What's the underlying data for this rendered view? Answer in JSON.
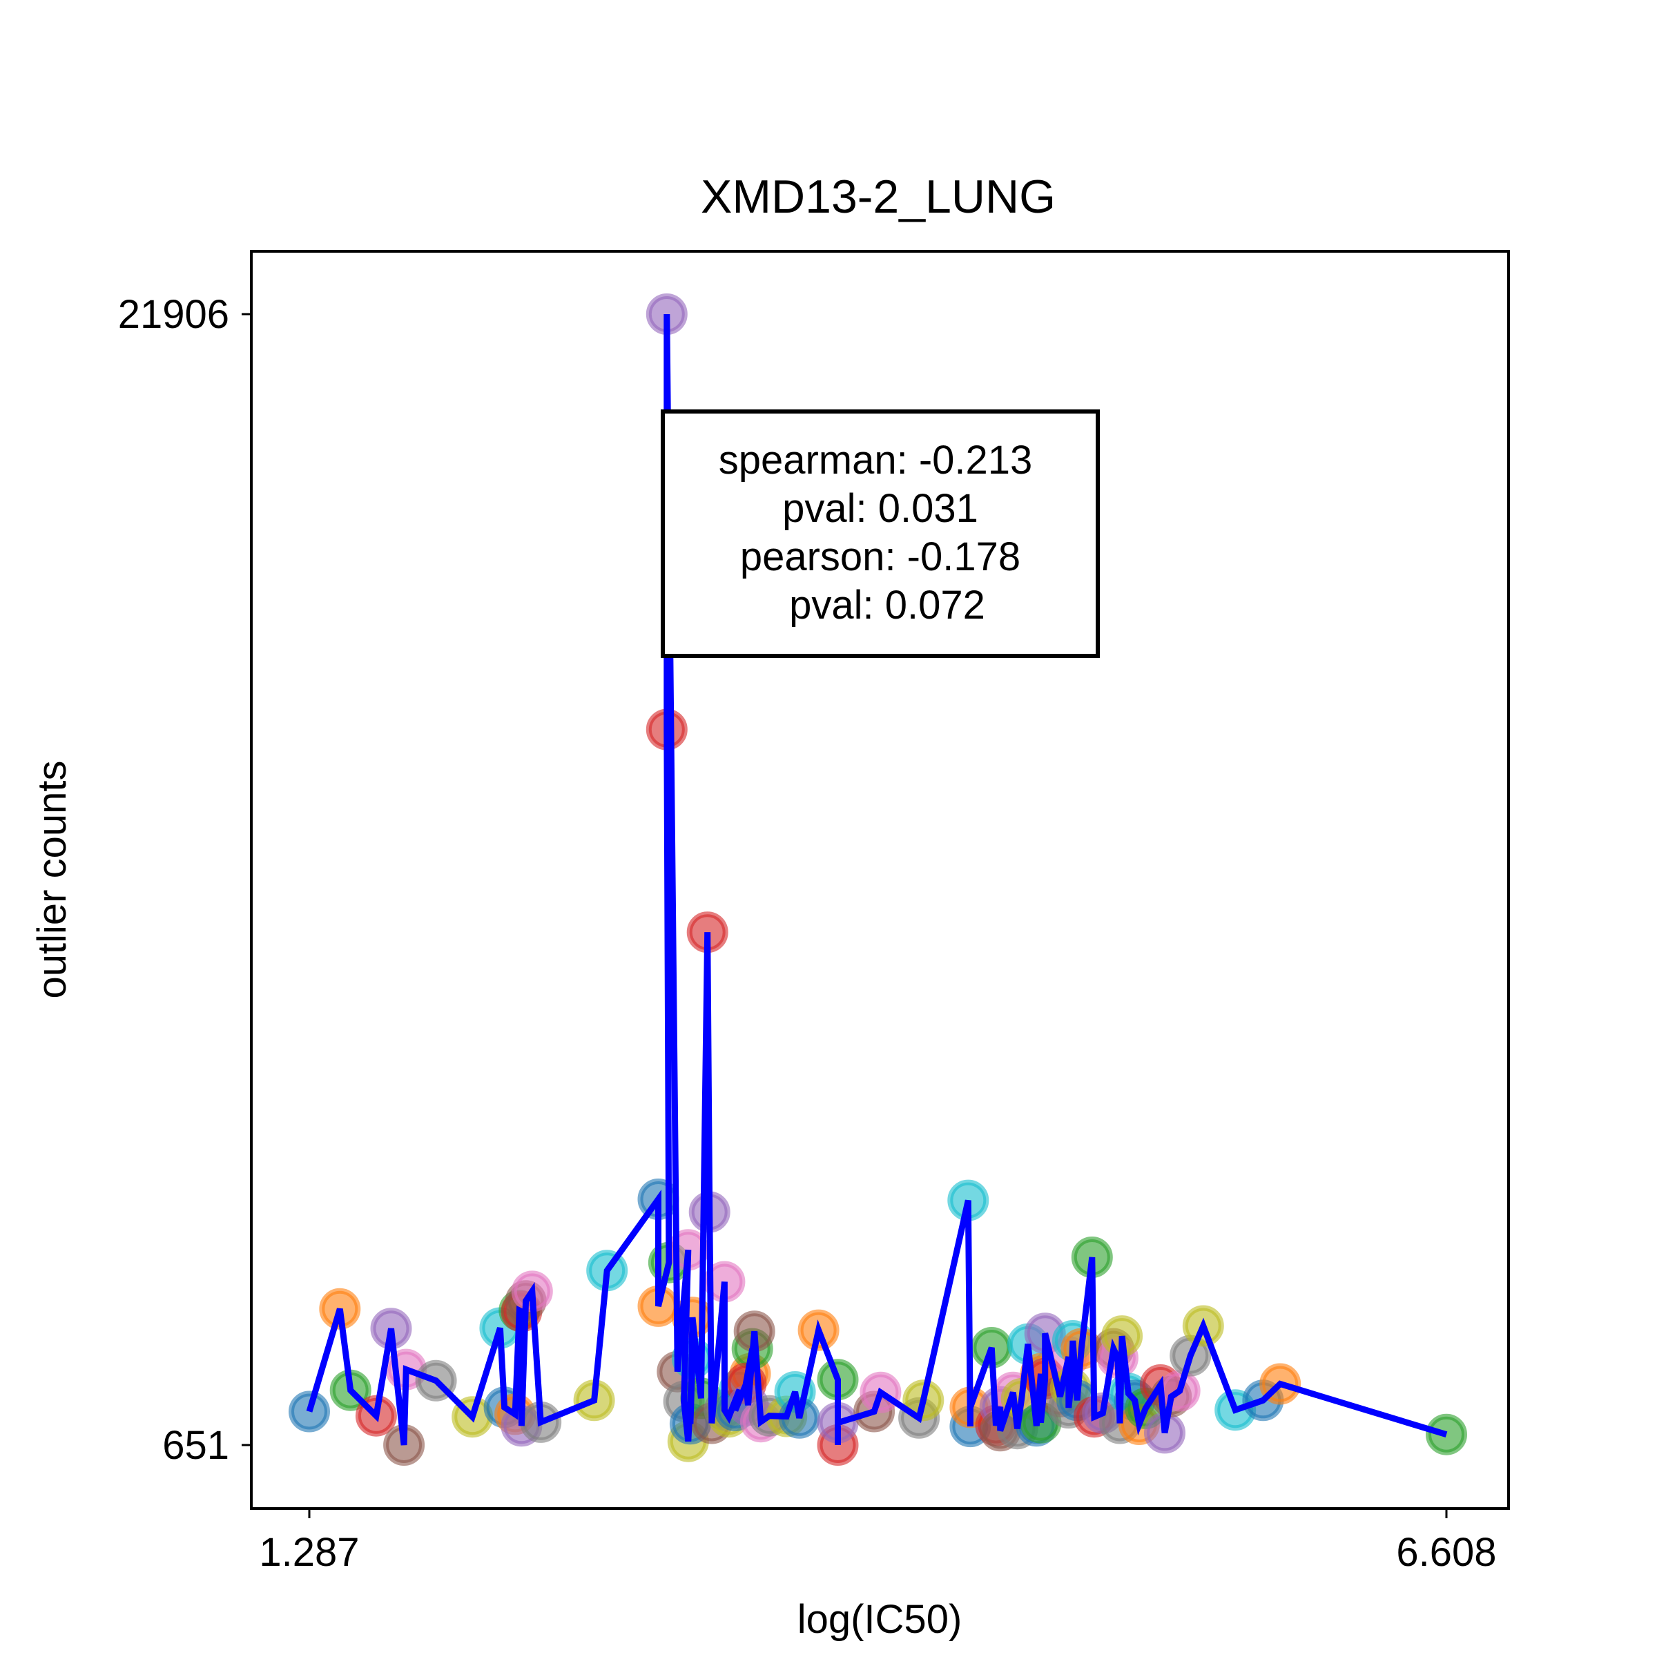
{
  "chart_data": {
    "type": "scatter",
    "title": "XMD13-2_LUNG",
    "xlabel": "log(IC50)",
    "ylabel": "outlier counts",
    "xlim": [
      1.287,
      6.608
    ],
    "ylim": [
      651,
      21906
    ],
    "x_ticks": [
      "1.287",
      "6.608"
    ],
    "y_ticks": [
      "21906",
      "651"
    ],
    "line_color": "#0000ff",
    "grid": false,
    "legend": "none",
    "annotation": {
      "lines": [
        "spearman: -0.213",
        "pval: 0.031",
        "pearson: -0.178",
        "pval: 0.072"
      ]
    },
    "points": [
      {
        "x": 1.287,
        "y": 1280,
        "c": "#1f77b4"
      },
      {
        "x": 1.43,
        "y": 3210,
        "c": "#ff7f0e"
      },
      {
        "x": 1.48,
        "y": 1680,
        "c": "#2ca02c"
      },
      {
        "x": 1.6,
        "y": 1200,
        "c": "#d62728"
      },
      {
        "x": 1.67,
        "y": 2840,
        "c": "#9467bd"
      },
      {
        "x": 1.73,
        "y": 651,
        "c": "#8c564b"
      },
      {
        "x": 1.74,
        "y": 2070,
        "c": "#e377c2"
      },
      {
        "x": 1.88,
        "y": 1860,
        "c": "#7f7f7f"
      },
      {
        "x": 2.05,
        "y": 1180,
        "c": "#bcbd22"
      },
      {
        "x": 2.18,
        "y": 2850,
        "c": "#17becf"
      },
      {
        "x": 2.2,
        "y": 1360,
        "c": "#1f77b4"
      },
      {
        "x": 2.25,
        "y": 1230,
        "c": "#ff7f0e"
      },
      {
        "x": 2.27,
        "y": 3180,
        "c": "#2ca02c"
      },
      {
        "x": 2.28,
        "y": 3160,
        "c": "#d62728"
      },
      {
        "x": 2.28,
        "y": 1010,
        "c": "#9467bd"
      },
      {
        "x": 2.3,
        "y": 3360,
        "c": "#8c564b"
      },
      {
        "x": 2.33,
        "y": 3540,
        "c": "#e377c2"
      },
      {
        "x": 2.37,
        "y": 1080,
        "c": "#7f7f7f"
      },
      {
        "x": 2.62,
        "y": 1490,
        "c": "#bcbd22"
      },
      {
        "x": 2.68,
        "y": 3930,
        "c": "#17becf"
      },
      {
        "x": 2.92,
        "y": 5270,
        "c": "#1f77b4"
      },
      {
        "x": 2.92,
        "y": 3260,
        "c": "#ff7f0e"
      },
      {
        "x": 2.97,
        "y": 4080,
        "c": "#2ca02c"
      },
      {
        "x": 2.96,
        "y": 14100,
        "c": "#d62728"
      },
      {
        "x": 2.96,
        "y": 21906,
        "c": "#9467bd"
      },
      {
        "x": 3.01,
        "y": 2030,
        "c": "#8c564b"
      },
      {
        "x": 3.06,
        "y": 4320,
        "c": "#e377c2"
      },
      {
        "x": 3.04,
        "y": 1470,
        "c": "#7f7f7f"
      },
      {
        "x": 3.06,
        "y": 720,
        "c": "#bcbd22"
      },
      {
        "x": 3.08,
        "y": 2280,
        "c": "#17becf"
      },
      {
        "x": 3.07,
        "y": 1050,
        "c": "#1f77b4"
      },
      {
        "x": 3.08,
        "y": 3050,
        "c": "#ff7f0e"
      },
      {
        "x": 3.12,
        "y": 1530,
        "c": "#2ca02c"
      },
      {
        "x": 3.15,
        "y": 10290,
        "c": "#d62728"
      },
      {
        "x": 3.16,
        "y": 5030,
        "c": "#9467bd"
      },
      {
        "x": 3.17,
        "y": 1060,
        "c": "#8c564b"
      },
      {
        "x": 3.23,
        "y": 3720,
        "c": "#e377c2"
      },
      {
        "x": 3.23,
        "y": 1310,
        "c": "#7f7f7f"
      },
      {
        "x": 3.25,
        "y": 1180,
        "c": "#bcbd22"
      },
      {
        "x": 3.3,
        "y": 1690,
        "c": "#17becf"
      },
      {
        "x": 3.28,
        "y": 1300,
        "c": "#1f77b4"
      },
      {
        "x": 3.35,
        "y": 1990,
        "c": "#ff7f0e"
      },
      {
        "x": 3.36,
        "y": 2460,
        "c": "#2ca02c"
      },
      {
        "x": 3.33,
        "y": 1810,
        "c": "#d62728"
      },
      {
        "x": 3.34,
        "y": 1400,
        "c": "#9467bd"
      },
      {
        "x": 3.37,
        "y": 2790,
        "c": "#8c564b"
      },
      {
        "x": 3.4,
        "y": 1090,
        "c": "#e377c2"
      },
      {
        "x": 3.44,
        "y": 1200,
        "c": "#7f7f7f"
      },
      {
        "x": 3.52,
        "y": 1190,
        "c": "#bcbd22"
      },
      {
        "x": 3.56,
        "y": 1650,
        "c": "#17becf"
      },
      {
        "x": 3.58,
        "y": 1160,
        "c": "#1f77b4"
      },
      {
        "x": 3.67,
        "y": 2810,
        "c": "#ff7f0e"
      },
      {
        "x": 3.76,
        "y": 1880,
        "c": "#2ca02c"
      },
      {
        "x": 3.76,
        "y": 651,
        "c": "#d62728"
      },
      {
        "x": 3.76,
        "y": 1070,
        "c": "#9467bd"
      },
      {
        "x": 3.93,
        "y": 1280,
        "c": "#8c564b"
      },
      {
        "x": 3.96,
        "y": 1640,
        "c": "#e377c2"
      },
      {
        "x": 4.14,
        "y": 1160,
        "c": "#7f7f7f"
      },
      {
        "x": 4.16,
        "y": 1490,
        "c": "#bcbd22"
      },
      {
        "x": 4.37,
        "y": 5250,
        "c": "#17becf"
      },
      {
        "x": 4.38,
        "y": 1000,
        "c": "#1f77b4"
      },
      {
        "x": 4.38,
        "y": 1360,
        "c": "#ff7f0e"
      },
      {
        "x": 4.48,
        "y": 2480,
        "c": "#2ca02c"
      },
      {
        "x": 4.5,
        "y": 1020,
        "c": "#d62728"
      },
      {
        "x": 4.52,
        "y": 1370,
        "c": "#9467bd"
      },
      {
        "x": 4.52,
        "y": 920,
        "c": "#8c564b"
      },
      {
        "x": 4.58,
        "y": 1640,
        "c": "#e377c2"
      },
      {
        "x": 4.6,
        "y": 960,
        "c": "#7f7f7f"
      },
      {
        "x": 4.62,
        "y": 1520,
        "c": "#bcbd22"
      },
      {
        "x": 4.65,
        "y": 2550,
        "c": "#17becf"
      },
      {
        "x": 4.69,
        "y": 1010,
        "c": "#1f77b4"
      },
      {
        "x": 4.71,
        "y": 1990,
        "c": "#ff7f0e"
      },
      {
        "x": 4.71,
        "y": 1070,
        "c": "#2ca02c"
      },
      {
        "x": 4.73,
        "y": 1900,
        "c": "#d62728"
      },
      {
        "x": 4.73,
        "y": 2750,
        "c": "#9467bd"
      },
      {
        "x": 4.8,
        "y": 1560,
        "c": "#8c564b"
      },
      {
        "x": 4.84,
        "y": 2310,
        "c": "#e377c2"
      },
      {
        "x": 4.84,
        "y": 1350,
        "c": "#7f7f7f"
      },
      {
        "x": 4.85,
        "y": 1720,
        "c": "#bcbd22"
      },
      {
        "x": 4.86,
        "y": 2610,
        "c": "#17becf"
      },
      {
        "x": 4.88,
        "y": 1490,
        "c": "#1f77b4"
      },
      {
        "x": 4.9,
        "y": 2460,
        "c": "#ff7f0e"
      },
      {
        "x": 4.95,
        "y": 4180,
        "c": "#2ca02c"
      },
      {
        "x": 4.96,
        "y": 1180,
        "c": "#d62728"
      },
      {
        "x": 5.0,
        "y": 1250,
        "c": "#9467bd"
      },
      {
        "x": 5.05,
        "y": 2460,
        "c": "#8c564b"
      },
      {
        "x": 5.07,
        "y": 2290,
        "c": "#e377c2"
      },
      {
        "x": 5.08,
        "y": 1060,
        "c": "#7f7f7f"
      },
      {
        "x": 5.09,
        "y": 2700,
        "c": "#bcbd22"
      },
      {
        "x": 5.12,
        "y": 1620,
        "c": "#17becf"
      },
      {
        "x": 5.15,
        "y": 1490,
        "c": "#1f77b4"
      },
      {
        "x": 5.17,
        "y": 1040,
        "c": "#ff7f0e"
      },
      {
        "x": 5.2,
        "y": 1340,
        "c": "#2ca02c"
      },
      {
        "x": 5.27,
        "y": 1780,
        "c": "#d62728"
      },
      {
        "x": 5.29,
        "y": 880,
        "c": "#9467bd"
      },
      {
        "x": 5.32,
        "y": 1560,
        "c": "#8c564b"
      },
      {
        "x": 5.36,
        "y": 1670,
        "c": "#e377c2"
      },
      {
        "x": 5.41,
        "y": 2330,
        "c": "#7f7f7f"
      },
      {
        "x": 5.47,
        "y": 2890,
        "c": "#bcbd22"
      },
      {
        "x": 5.62,
        "y": 1310,
        "c": "#17becf"
      },
      {
        "x": 5.75,
        "y": 1490,
        "c": "#1f77b4"
      },
      {
        "x": 5.83,
        "y": 1800,
        "c": "#ff7f0e"
      },
      {
        "x": 6.608,
        "y": 850,
        "c": "#2ca02c"
      }
    ]
  }
}
